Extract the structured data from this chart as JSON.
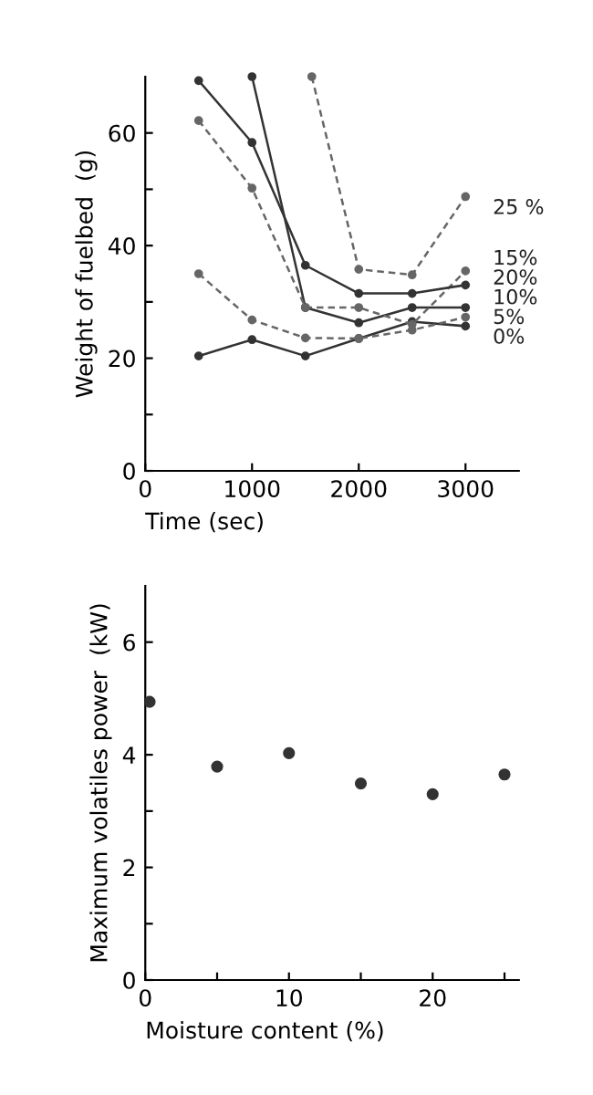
{
  "chart_data": [
    {
      "type": "line",
      "xlabel": "Time (sec)",
      "ylabel": "Weight of fuelbed  (g)",
      "x": [
        500,
        1000,
        1500,
        2000,
        2500,
        3000
      ],
      "series": [
        {
          "name": "0%",
          "color": "#333333",
          "line_style": "solid",
          "values": [
            20.4,
            23.3,
            20.4,
            23.5,
            26.5,
            25.7
          ]
        },
        {
          "name": "5%",
          "color": "#666666",
          "line_style": "dashed",
          "values": [
            35,
            26.8,
            23.6,
            23.5,
            25,
            27.3
          ]
        },
        {
          "name": "10%",
          "color": "#333333",
          "line_style": "solid",
          "x": [
            1000,
            1500,
            2000,
            2500,
            3000
          ],
          "values": [
            70,
            29,
            26.3,
            29,
            29
          ]
        },
        {
          "name": "15%",
          "color": "#666666",
          "line_style": "dashed",
          "values": [
            62.2,
            50.2,
            29,
            29,
            26,
            35.5
          ]
        },
        {
          "name": "20%",
          "color": "#333333",
          "line_style": "solid",
          "values": [
            69.3,
            58.3,
            36.5,
            31.5,
            31.5,
            33
          ]
        },
        {
          "name": "25 %",
          "color": "#666666",
          "line_style": "dashed",
          "x": [
            1560,
            2000,
            2500,
            3000
          ],
          "values": [
            70,
            35.8,
            34.8,
            48.7
          ]
        }
      ],
      "marker": "circle",
      "xlim": [
        0,
        3500
      ],
      "ylim": [
        0,
        70
      ],
      "xticks": [
        0,
        1000,
        2000,
        3000
      ],
      "yticks": [
        0,
        {
          "value": 10,
          "label": null
        },
        20,
        {
          "value": 30,
          "label": null
        },
        40,
        {
          "value": 50,
          "label": null
        },
        60
      ],
      "grid": false,
      "legend": false
    },
    {
      "type": "scatter",
      "xlabel": "Moisture content (%)",
      "ylabel": "Maximum volatiles power  (kW)",
      "x": [
        0.3,
        5,
        10,
        15,
        20,
        25
      ],
      "series": [
        {
          "color": "#333333",
          "values": [
            4.94,
            3.79,
            4.03,
            3.49,
            3.3,
            3.65
          ]
        }
      ],
      "marker": "circle",
      "xlim": [
        0,
        26
      ],
      "ylim": [
        0,
        7
      ],
      "xticks": [
        0,
        {
          "value": 5,
          "label": null
        },
        10,
        {
          "value": 15,
          "label": null
        },
        20,
        {
          "value": 25,
          "label": null
        }
      ],
      "yticks": [
        0,
        {
          "value": 1,
          "label": null
        },
        2,
        {
          "value": 3,
          "label": null
        },
        4,
        {
          "value": 5,
          "label": null
        },
        6
      ],
      "grid": false,
      "legend": false
    }
  ]
}
